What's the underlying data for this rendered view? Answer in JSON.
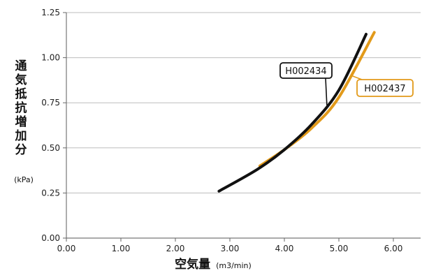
{
  "chart_data": {
    "type": "line",
    "xlabel": "空気量",
    "xlabel_unit": "(m3/min)",
    "ylabel": "通気抵抗増加分",
    "ylabel_unit": "(kPa)",
    "xlim": [
      0,
      6.5
    ],
    "ylim": [
      0,
      1.25
    ],
    "x_ticks": [
      "0.00",
      "1.00",
      "2.00",
      "3.00",
      "4.00",
      "5.00",
      "6.00"
    ],
    "y_ticks": [
      "0.00",
      "0.25",
      "0.50",
      "0.75",
      "1.00",
      "1.25"
    ],
    "grid": "horizontal",
    "series": [
      {
        "name": "H002434",
        "color": "#111111",
        "points": [
          [
            2.8,
            0.26
          ],
          [
            3.5,
            0.38
          ],
          [
            4.0,
            0.49
          ],
          [
            4.5,
            0.63
          ],
          [
            5.0,
            0.82
          ],
          [
            5.5,
            1.13
          ]
        ]
      },
      {
        "name": "H002437",
        "color": "#e29a1a",
        "points": [
          [
            3.55,
            0.4
          ],
          [
            4.0,
            0.49
          ],
          [
            4.5,
            0.61
          ],
          [
            5.0,
            0.78
          ],
          [
            5.65,
            1.14
          ]
        ]
      }
    ]
  }
}
